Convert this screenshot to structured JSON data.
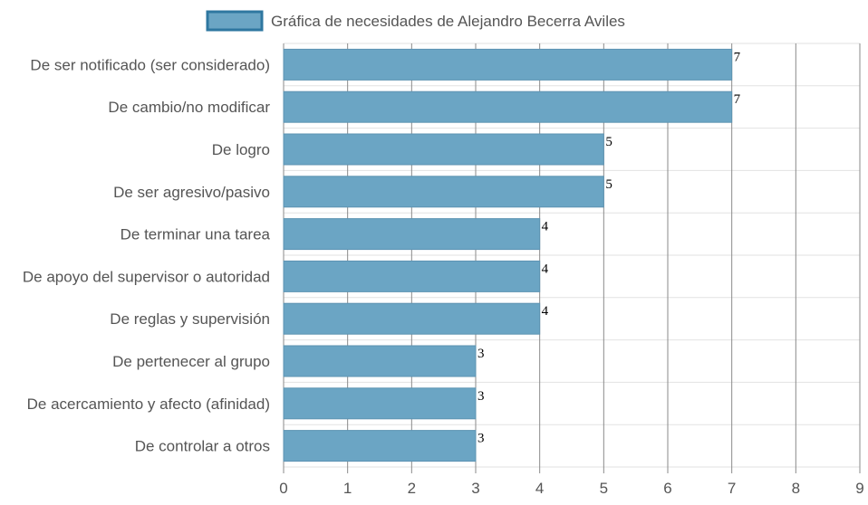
{
  "chart_data": {
    "type": "bar",
    "orientation": "horizontal",
    "legend": {
      "label": "Gráfica de necesidades de Alejandro Becerra Aviles",
      "position": "top"
    },
    "categories": [
      "De ser notificado (ser considerado)",
      "De cambio/no modificar",
      "De logro",
      "De ser agresivo/pasivo",
      "De terminar una tarea",
      "De apoyo del supervisor o autoridad",
      "De reglas y supervisión",
      "De pertenecer al grupo",
      "De acercamiento y afecto (afinidad)",
      "De controlar a otros"
    ],
    "values": [
      7,
      7,
      5,
      5,
      4,
      4,
      4,
      3,
      3,
      3
    ],
    "value_labels": [
      "7",
      "7",
      "5",
      "5",
      "4",
      "4",
      "4",
      "3",
      "3",
      "3"
    ],
    "x_ticks": [
      "0",
      "1",
      "2",
      "3",
      "4",
      "5",
      "6",
      "7",
      "8",
      "9"
    ],
    "xlim": [
      0,
      9
    ],
    "grid": true,
    "colors": {
      "bar_fill": "#6ba5c4",
      "bar_stroke": "#5d93b2",
      "legend_fill": "#6ba5c4",
      "legend_stroke": "#2f77a0",
      "grid_vertical": "#8a8a8a",
      "grid_horizontal": "#e2e2e2"
    }
  }
}
